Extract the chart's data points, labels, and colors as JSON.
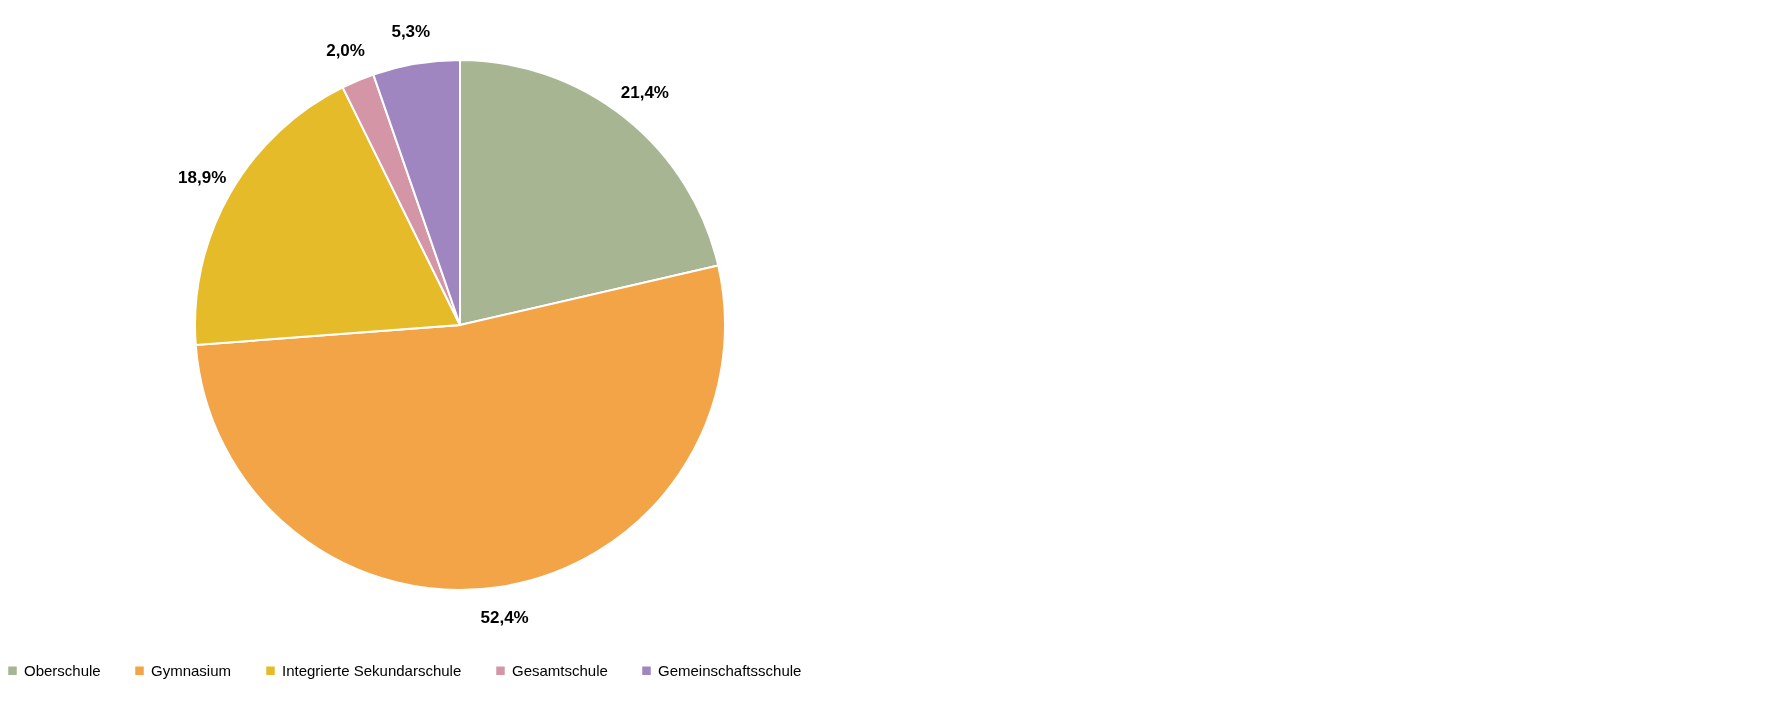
{
  "chart_data": {
    "type": "pie",
    "categories": [
      "Oberschule",
      "Gymnasium",
      "Integrierte Sekundarschule",
      "Gesamtschule",
      "Gemeinschaftsschule"
    ],
    "values": [
      21.4,
      52.4,
      18.9,
      2.0,
      5.3
    ],
    "colors": [
      "#a7b592",
      "#f2a446",
      "#e5bb2a",
      "#d496a7",
      "#9f86c0"
    ],
    "value_labels": [
      "21,4%",
      "52,4%",
      "18,9%",
      "2,0%",
      "5,3%"
    ],
    "legend": "bottom left"
  }
}
